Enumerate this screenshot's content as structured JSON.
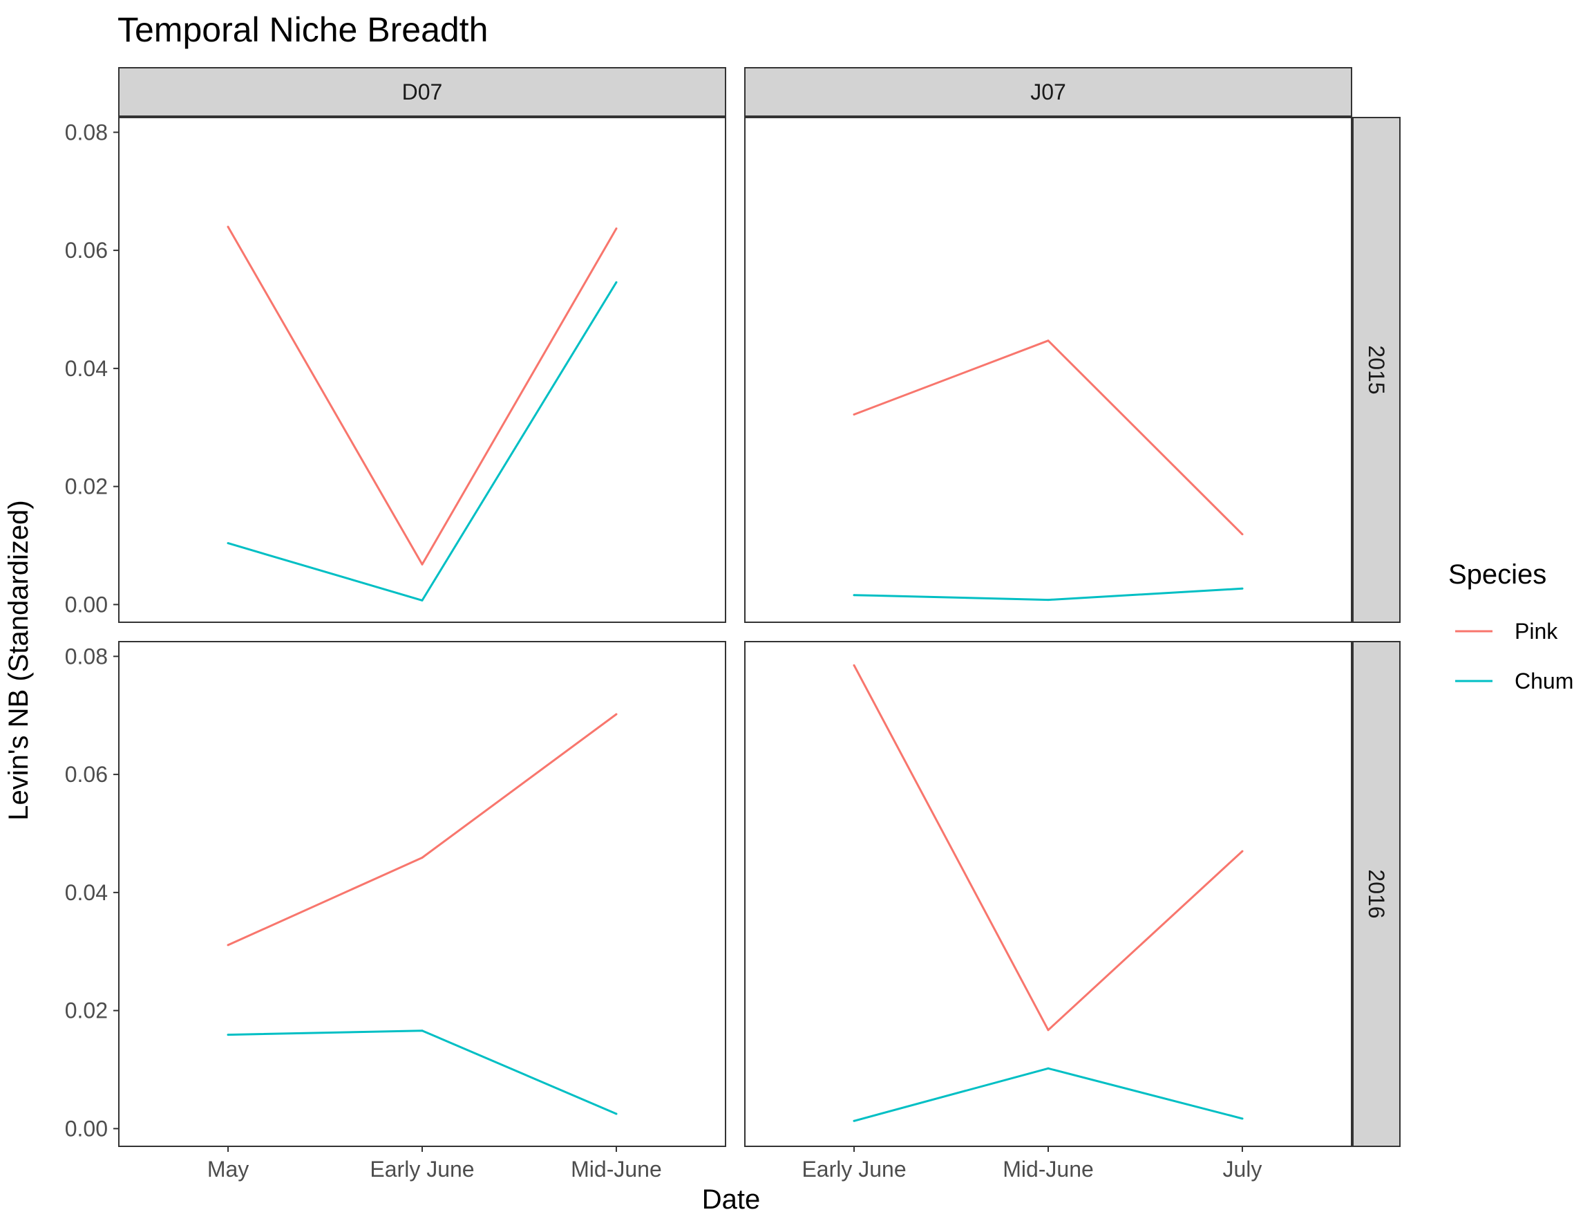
{
  "chart_data": {
    "type": "line",
    "title": "Temporal Niche Breadth",
    "xlabel": "Date",
    "ylabel": "Levin's NB (Standardized)",
    "ylim": [
      -0.003,
      0.0825
    ],
    "yticks": [
      0.0,
      0.02,
      0.04,
      0.06,
      0.08
    ],
    "ytick_labels": [
      "0.00",
      "0.02",
      "0.04",
      "0.06",
      "0.08"
    ],
    "grid": false,
    "legend": {
      "title": "Species",
      "position": "right"
    },
    "colors": {
      "Pink": "#F8766D",
      "Chum": "#00BFC4",
      "strip_fill": "#D3D3D3"
    },
    "columns": [
      {
        "label": "D07",
        "categories": [
          "May",
          "Early June",
          "Mid-June"
        ]
      },
      {
        "label": "J07",
        "categories": [
          "Early June",
          "Mid-June",
          "July"
        ]
      }
    ],
    "rows": [
      "2015",
      "2016"
    ],
    "panels": [
      {
        "column": "D07",
        "row": "2015",
        "series": [
          {
            "name": "Pink",
            "values": [
              0.064,
              0.0068,
              0.0637
            ]
          },
          {
            "name": "Chum",
            "values": [
              0.0104,
              0.0007,
              0.0546
            ]
          }
        ]
      },
      {
        "column": "J07",
        "row": "2015",
        "series": [
          {
            "name": "Pink",
            "values": [
              0.0322,
              0.0447,
              0.0119
            ]
          },
          {
            "name": "Chum",
            "values": [
              0.0016,
              0.0008,
              0.0027
            ]
          }
        ]
      },
      {
        "column": "D07",
        "row": "2016",
        "series": [
          {
            "name": "Pink",
            "values": [
              0.0311,
              0.0459,
              0.0702
            ]
          },
          {
            "name": "Chum",
            "values": [
              0.0159,
              0.0166,
              0.0025
            ]
          }
        ]
      },
      {
        "column": "J07",
        "row": "2016",
        "series": [
          {
            "name": "Pink",
            "values": [
              0.0785,
              0.0167,
              0.047
            ]
          },
          {
            "name": "Chum",
            "values": [
              0.0013,
              0.0102,
              0.0017
            ]
          }
        ]
      }
    ]
  }
}
